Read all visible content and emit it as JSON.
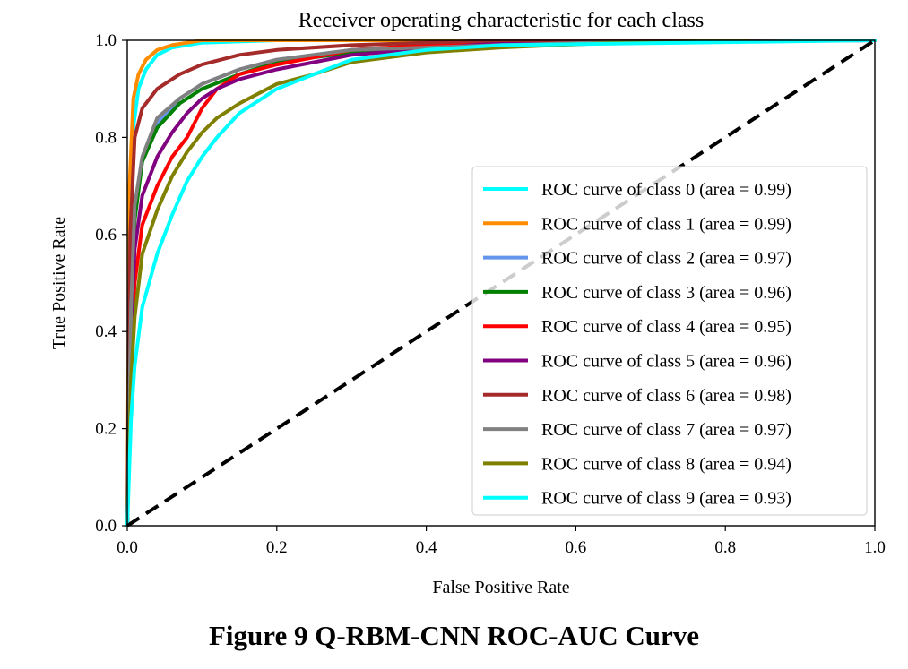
{
  "chart_data": {
    "type": "line",
    "title": "Receiver operating characteristic for each class",
    "xlabel": "False Positive Rate",
    "ylabel": "True Positive Rate",
    "xlim": [
      0.0,
      1.0
    ],
    "ylim": [
      0.0,
      1.0
    ],
    "xticks": [
      "0.0",
      "0.2",
      "0.4",
      "0.6",
      "0.8",
      "1.0"
    ],
    "yticks": [
      "0.0",
      "0.2",
      "0.4",
      "0.6",
      "0.8",
      "1.0"
    ],
    "grid": false,
    "legend_position": "lower-right",
    "reference_line": {
      "x": [
        0,
        1
      ],
      "y": [
        0,
        1
      ],
      "color": "#000000",
      "style": "dashed"
    },
    "series": [
      {
        "name": "ROC curve of class 0 (area = 0.99)",
        "color": "#00ffff",
        "x": [
          0,
          0.003,
          0.008,
          0.015,
          0.025,
          0.04,
          0.06,
          0.1,
          0.2,
          1.0
        ],
        "y": [
          0,
          0.55,
          0.82,
          0.9,
          0.94,
          0.97,
          0.985,
          0.995,
          1.0,
          1.0
        ]
      },
      {
        "name": "ROC curve of class 1 (area = 0.99)",
        "color": "#ff8c00",
        "x": [
          0,
          0.003,
          0.008,
          0.015,
          0.025,
          0.04,
          0.06,
          0.08,
          0.1,
          1.0
        ],
        "y": [
          0,
          0.7,
          0.88,
          0.93,
          0.96,
          0.98,
          0.99,
          0.995,
          1.0,
          1.0
        ]
      },
      {
        "name": "ROC curve of class 2 (area = 0.97)",
        "color": "#6495ed",
        "x": [
          0,
          0.005,
          0.01,
          0.02,
          0.04,
          0.07,
          0.1,
          0.15,
          0.2,
          0.3,
          0.5,
          0.6,
          1.0
        ],
        "y": [
          0,
          0.45,
          0.65,
          0.75,
          0.83,
          0.88,
          0.91,
          0.94,
          0.96,
          0.98,
          0.995,
          1.0,
          1.0
        ]
      },
      {
        "name": "ROC curve of class 3 (area = 0.96)",
        "color": "#008000",
        "x": [
          0,
          0.005,
          0.01,
          0.02,
          0.04,
          0.07,
          0.1,
          0.15,
          0.2,
          0.3,
          0.5,
          0.6,
          1.0
        ],
        "y": [
          0,
          0.45,
          0.63,
          0.75,
          0.82,
          0.87,
          0.9,
          0.93,
          0.955,
          0.975,
          0.99,
          1.0,
          1.0
        ]
      },
      {
        "name": "ROC curve of class 4 (area = 0.95)",
        "color": "#ff0000",
        "x": [
          0,
          0.005,
          0.01,
          0.02,
          0.04,
          0.06,
          0.08,
          0.09,
          0.1,
          0.12,
          0.15,
          0.2,
          0.3,
          0.5,
          1.0
        ],
        "y": [
          0,
          0.35,
          0.5,
          0.62,
          0.7,
          0.76,
          0.8,
          0.83,
          0.86,
          0.9,
          0.93,
          0.95,
          0.98,
          1.0,
          1.0
        ]
      },
      {
        "name": "ROC curve of class 5 (area = 0.96)",
        "color": "#800080",
        "x": [
          0,
          0.005,
          0.01,
          0.02,
          0.04,
          0.06,
          0.08,
          0.1,
          0.12,
          0.15,
          0.2,
          0.3,
          0.5,
          1.0
        ],
        "y": [
          0,
          0.4,
          0.57,
          0.68,
          0.76,
          0.81,
          0.85,
          0.88,
          0.9,
          0.92,
          0.94,
          0.97,
          0.995,
          1.0
        ]
      },
      {
        "name": "ROC curve of class 6 (area = 0.98)",
        "color": "#a52a2a",
        "x": [
          0,
          0.004,
          0.01,
          0.02,
          0.04,
          0.07,
          0.1,
          0.15,
          0.2,
          0.3,
          0.5,
          1.0
        ],
        "y": [
          0,
          0.6,
          0.8,
          0.86,
          0.9,
          0.93,
          0.95,
          0.97,
          0.98,
          0.99,
          1.0,
          1.0
        ]
      },
      {
        "name": "ROC curve of class 7 (area = 0.97)",
        "color": "#808080",
        "x": [
          0,
          0.005,
          0.01,
          0.02,
          0.04,
          0.07,
          0.1,
          0.15,
          0.2,
          0.3,
          0.5,
          0.62,
          1.0
        ],
        "y": [
          0,
          0.45,
          0.66,
          0.76,
          0.84,
          0.88,
          0.91,
          0.94,
          0.96,
          0.98,
          0.99,
          0.995,
          1.0
        ]
      },
      {
        "name": "ROC curve of class 8 (area = 0.94)",
        "color": "#808000",
        "x": [
          0,
          0.005,
          0.01,
          0.02,
          0.04,
          0.06,
          0.08,
          0.1,
          0.12,
          0.15,
          0.2,
          0.25,
          0.3,
          0.4,
          0.5,
          0.65,
          0.83
        ],
        "y": [
          0,
          0.3,
          0.43,
          0.56,
          0.65,
          0.72,
          0.77,
          0.81,
          0.84,
          0.87,
          0.91,
          0.93,
          0.955,
          0.975,
          0.985,
          0.995,
          1.0
        ]
      },
      {
        "name": "ROC curve of class 9 (area = 0.93)",
        "color": "#00ffff",
        "x": [
          0,
          0.005,
          0.01,
          0.02,
          0.04,
          0.06,
          0.08,
          0.1,
          0.12,
          0.15,
          0.2,
          0.25,
          0.3,
          0.4,
          0.5,
          1.0
        ],
        "y": [
          0,
          0.22,
          0.33,
          0.45,
          0.56,
          0.64,
          0.71,
          0.76,
          0.8,
          0.85,
          0.9,
          0.93,
          0.96,
          0.98,
          0.99,
          1.0
        ]
      }
    ]
  },
  "figure": {
    "caption": "Figure 9 Q-RBM-CNN ROC-AUC Curve"
  }
}
